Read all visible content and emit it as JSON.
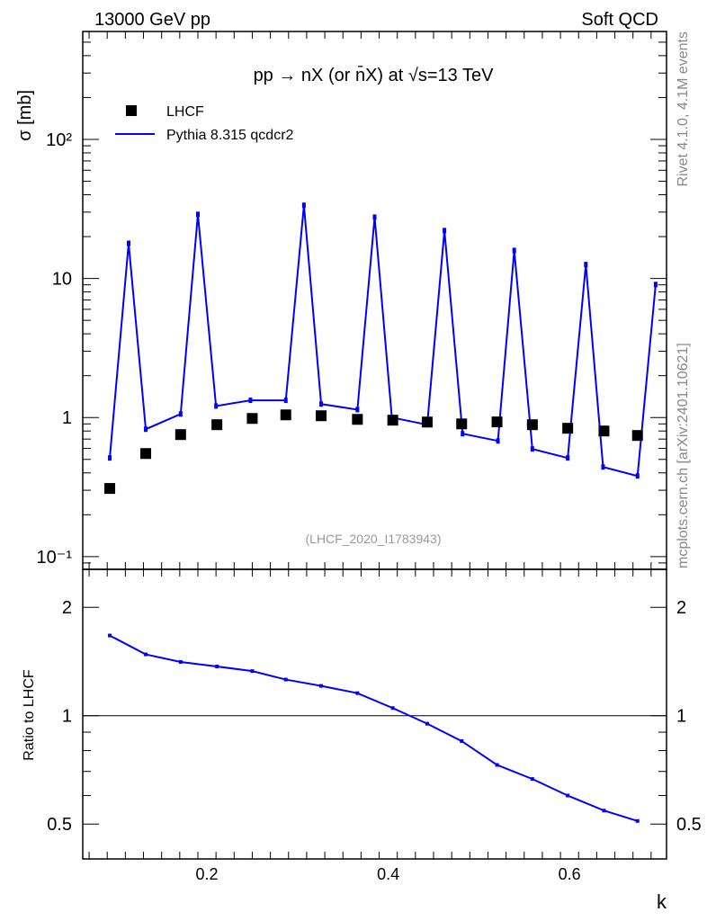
{
  "header": {
    "left": "13000 GeV pp",
    "right": "Soft QCD"
  },
  "side_labels": {
    "rivet": "Rivet 4.1.0,  4.1M events",
    "mcplots": "mcplots.cern.ch [arXiv:2401.10621]"
  },
  "chart_data": [
    {
      "type": "scatter",
      "title": "pp → nX (or n̄X) at √s=13 TeV",
      "analysis_id": "(LHCF_2020_I1783943)",
      "ylabel": "σ [mb]",
      "yscale": "log",
      "xlim": [
        0.063,
        0.707
      ],
      "ylim": [
        0.081,
        597
      ],
      "yticks": [
        {
          "v": 0.1,
          "label": "10⁻¹"
        },
        {
          "v": 1,
          "label": "1"
        },
        {
          "v": 10,
          "label": "10"
        },
        {
          "v": 100,
          "label": "10²"
        }
      ],
      "legend_position": "top-left",
      "series": [
        {
          "name": "LHCF",
          "kind": "markers",
          "color": "#000000",
          "x": [
            0.0928,
            0.1325,
            0.171,
            0.211,
            0.25,
            0.287,
            0.326,
            0.366,
            0.405,
            0.443,
            0.481,
            0.52,
            0.559,
            0.598,
            0.638,
            0.675
          ],
          "y": [
            0.309,
            0.551,
            0.754,
            0.888,
            0.985,
            1.045,
            1.03,
            0.97,
            0.957,
            0.928,
            0.9,
            0.93,
            0.888,
            0.837,
            0.8,
            0.743
          ]
        },
        {
          "name": "Pythia 8.315 qcdcr2",
          "kind": "line",
          "color": "#0000ff",
          "x": [
            0.0928,
            0.1136,
            0.1325,
            0.171,
            0.19,
            0.21,
            0.248,
            0.287,
            0.307,
            0.326,
            0.366,
            0.385,
            0.404,
            0.443,
            0.462,
            0.482,
            0.521,
            0.539,
            0.559,
            0.598,
            0.618,
            0.637,
            0.675,
            0.695
          ],
          "y": [
            0.512,
            17.9,
            0.824,
            1.06,
            28.9,
            1.21,
            1.33,
            1.33,
            33.6,
            1.25,
            1.14,
            27.6,
            1.0,
            0.888,
            22.1,
            0.765,
            0.679,
            15.9,
            0.594,
            0.512,
            12.6,
            0.441,
            0.38,
            9.05
          ]
        }
      ]
    },
    {
      "type": "line",
      "ylabel": "Ratio to LHCF",
      "xlabel": "k",
      "yscale": "log",
      "xlim": [
        0.063,
        0.707
      ],
      "ylim": [
        0.4,
        2.55
      ],
      "yticks": [
        {
          "v": 0.5,
          "label": "0.5"
        },
        {
          "v": 1,
          "label": "1"
        },
        {
          "v": 2,
          "label": "2"
        }
      ],
      "xticks": [
        {
          "v": 0.2,
          "label": "0.2"
        },
        {
          "v": 0.4,
          "label": "0.4"
        },
        {
          "v": 0.6,
          "label": "0.6"
        }
      ],
      "reference_line": 1,
      "series": [
        {
          "name": "Pythia 8.315 qcdcr2 / LHCF",
          "color": "#0000ff",
          "x": [
            0.0928,
            0.1325,
            0.171,
            0.211,
            0.25,
            0.287,
            0.326,
            0.366,
            0.405,
            0.443,
            0.481,
            0.52,
            0.559,
            0.598,
            0.638,
            0.675
          ],
          "y": [
            1.67,
            1.48,
            1.41,
            1.37,
            1.33,
            1.26,
            1.21,
            1.155,
            1.05,
            0.95,
            0.85,
            0.73,
            0.667,
            0.6,
            0.545,
            0.51
          ]
        }
      ]
    }
  ]
}
